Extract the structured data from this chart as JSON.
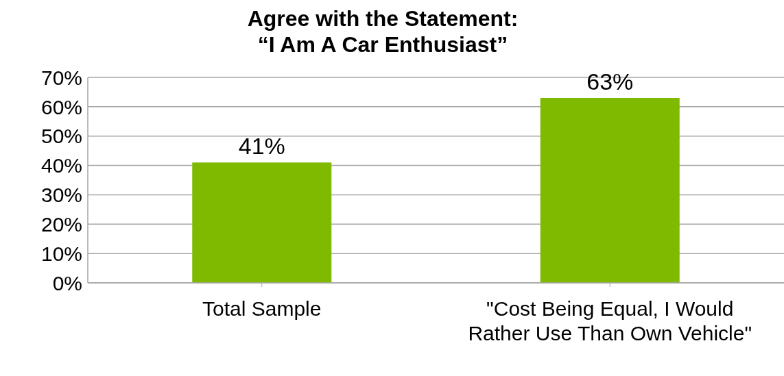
{
  "chart_data": {
    "type": "bar",
    "title": "Agree with the Statement:\n“I Am A Car Enthusiast”",
    "categories": [
      "Total Sample",
      "\"Cost Being Equal, I Would Rather Use Than Own Vehicle\""
    ],
    "values": [
      41,
      63
    ],
    "value_labels": [
      "41%",
      "63%"
    ],
    "color": "#7fba00",
    "ylim": [
      0,
      70
    ],
    "yticks": [
      {
        "value": 0,
        "label": "0%"
      },
      {
        "value": 10,
        "label": "10%"
      },
      {
        "value": 20,
        "label": "20%"
      },
      {
        "value": 30,
        "label": "30%"
      },
      {
        "value": 40,
        "label": "40%"
      },
      {
        "value": 50,
        "label": "50%"
      },
      {
        "value": 60,
        "label": "60%"
      },
      {
        "value": 70,
        "label": "70%"
      }
    ],
    "grid": "y",
    "legend": false
  }
}
